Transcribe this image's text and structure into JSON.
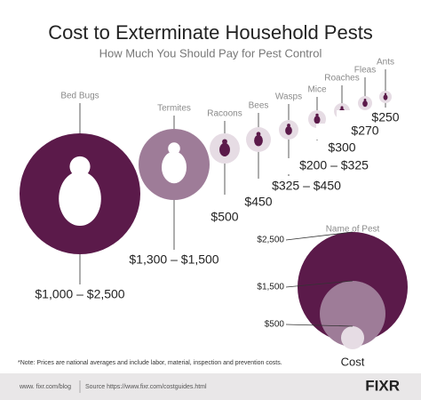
{
  "header": {
    "title": "Cost to Exterminate Household Pests",
    "subtitle": "How Much You Should Pay for Pest Control"
  },
  "pests": [
    {
      "name": "Bed Bugs",
      "price": "$1,000 – $2,500"
    },
    {
      "name": "Termites",
      "price": "$1,300 – $1,500"
    },
    {
      "name": "Racoons",
      "price": "$500"
    },
    {
      "name": "Bees",
      "price": "$450"
    },
    {
      "name": "Wasps",
      "price": "$325 – $450"
    },
    {
      "name": "Mice",
      "price": "$200 – $325"
    },
    {
      "name": "Roaches",
      "price": "$300"
    },
    {
      "name": "Fleas",
      "price": "$270"
    },
    {
      "name": "Ants",
      "price": "$250"
    }
  ],
  "legend": {
    "title": "Name of Pest",
    "caption": "Cost",
    "levels": [
      "$2,500",
      "$1,500",
      "$500"
    ]
  },
  "note": "*Note: Prices are national averages and include labor, material, inspection and prevention costs.",
  "footer": {
    "blog": "www. fixr.com/blog",
    "source": "Source https://www.fixr.com/costguides.html",
    "logo": "FIXR"
  }
}
